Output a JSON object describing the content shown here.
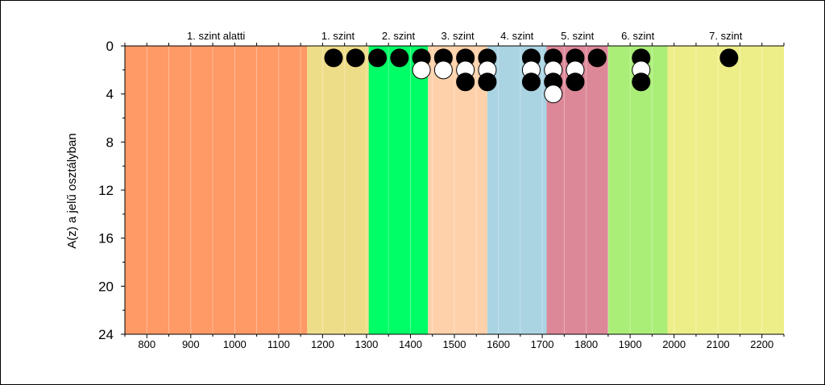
{
  "chart_data": {
    "type": "scatter",
    "title": "",
    "xlabel": "",
    "ylabel": "A(z) a jelű osztályban",
    "xlim": [
      750,
      2250
    ],
    "ylim": [
      24,
      0
    ],
    "x_ticks": [
      800,
      900,
      1000,
      1100,
      1200,
      1300,
      1400,
      1500,
      1600,
      1700,
      1800,
      1900,
      2000,
      2100,
      2200
    ],
    "y_ticks": [
      0,
      4,
      8,
      12,
      16,
      20,
      24
    ],
    "grid": true,
    "bands": [
      {
        "label": "1. szint alatti",
        "from": 750,
        "to": 1165,
        "color": "#ff9966"
      },
      {
        "label": "1. szint",
        "from": 1165,
        "to": 1305,
        "color": "#eedd88"
      },
      {
        "label": "2. szint",
        "from": 1305,
        "to": 1440,
        "color": "#00ff66"
      },
      {
        "label": "3. szint",
        "from": 1440,
        "to": 1575,
        "color": "#ffd1aa"
      },
      {
        "label": "4. szint",
        "from": 1575,
        "to": 1710,
        "color": "#aad4e2"
      },
      {
        "label": "5. szint",
        "from": 1710,
        "to": 1850,
        "color": "#dd8899"
      },
      {
        "label": "6. szint",
        "from": 1850,
        "to": 1985,
        "color": "#aaee77"
      },
      {
        "label": "7. szint",
        "from": 1985,
        "to": 2250,
        "color": "#eeee88"
      }
    ],
    "series": [
      {
        "color": "#000000",
        "points": [
          [
            1225,
            1
          ],
          [
            1275,
            1
          ],
          [
            1325,
            1
          ],
          [
            1375,
            1
          ],
          [
            1425,
            1
          ],
          [
            1475,
            1
          ],
          [
            1525,
            1
          ],
          [
            1525,
            3
          ],
          [
            1575,
            1
          ],
          [
            1575,
            3
          ],
          [
            1675,
            1
          ],
          [
            1675,
            3
          ],
          [
            1725,
            1
          ],
          [
            1725,
            3
          ],
          [
            1775,
            1
          ],
          [
            1775,
            3
          ],
          [
            1825,
            1
          ],
          [
            1925,
            1
          ],
          [
            1925,
            3
          ],
          [
            2125,
            1
          ]
        ]
      },
      {
        "color": "#ffffff",
        "points": [
          [
            1425,
            2
          ],
          [
            1475,
            2
          ],
          [
            1525,
            2
          ],
          [
            1575,
            2
          ],
          [
            1675,
            2
          ],
          [
            1725,
            2
          ],
          [
            1725,
            4
          ],
          [
            1775,
            2
          ],
          [
            1925,
            2
          ]
        ]
      }
    ]
  }
}
